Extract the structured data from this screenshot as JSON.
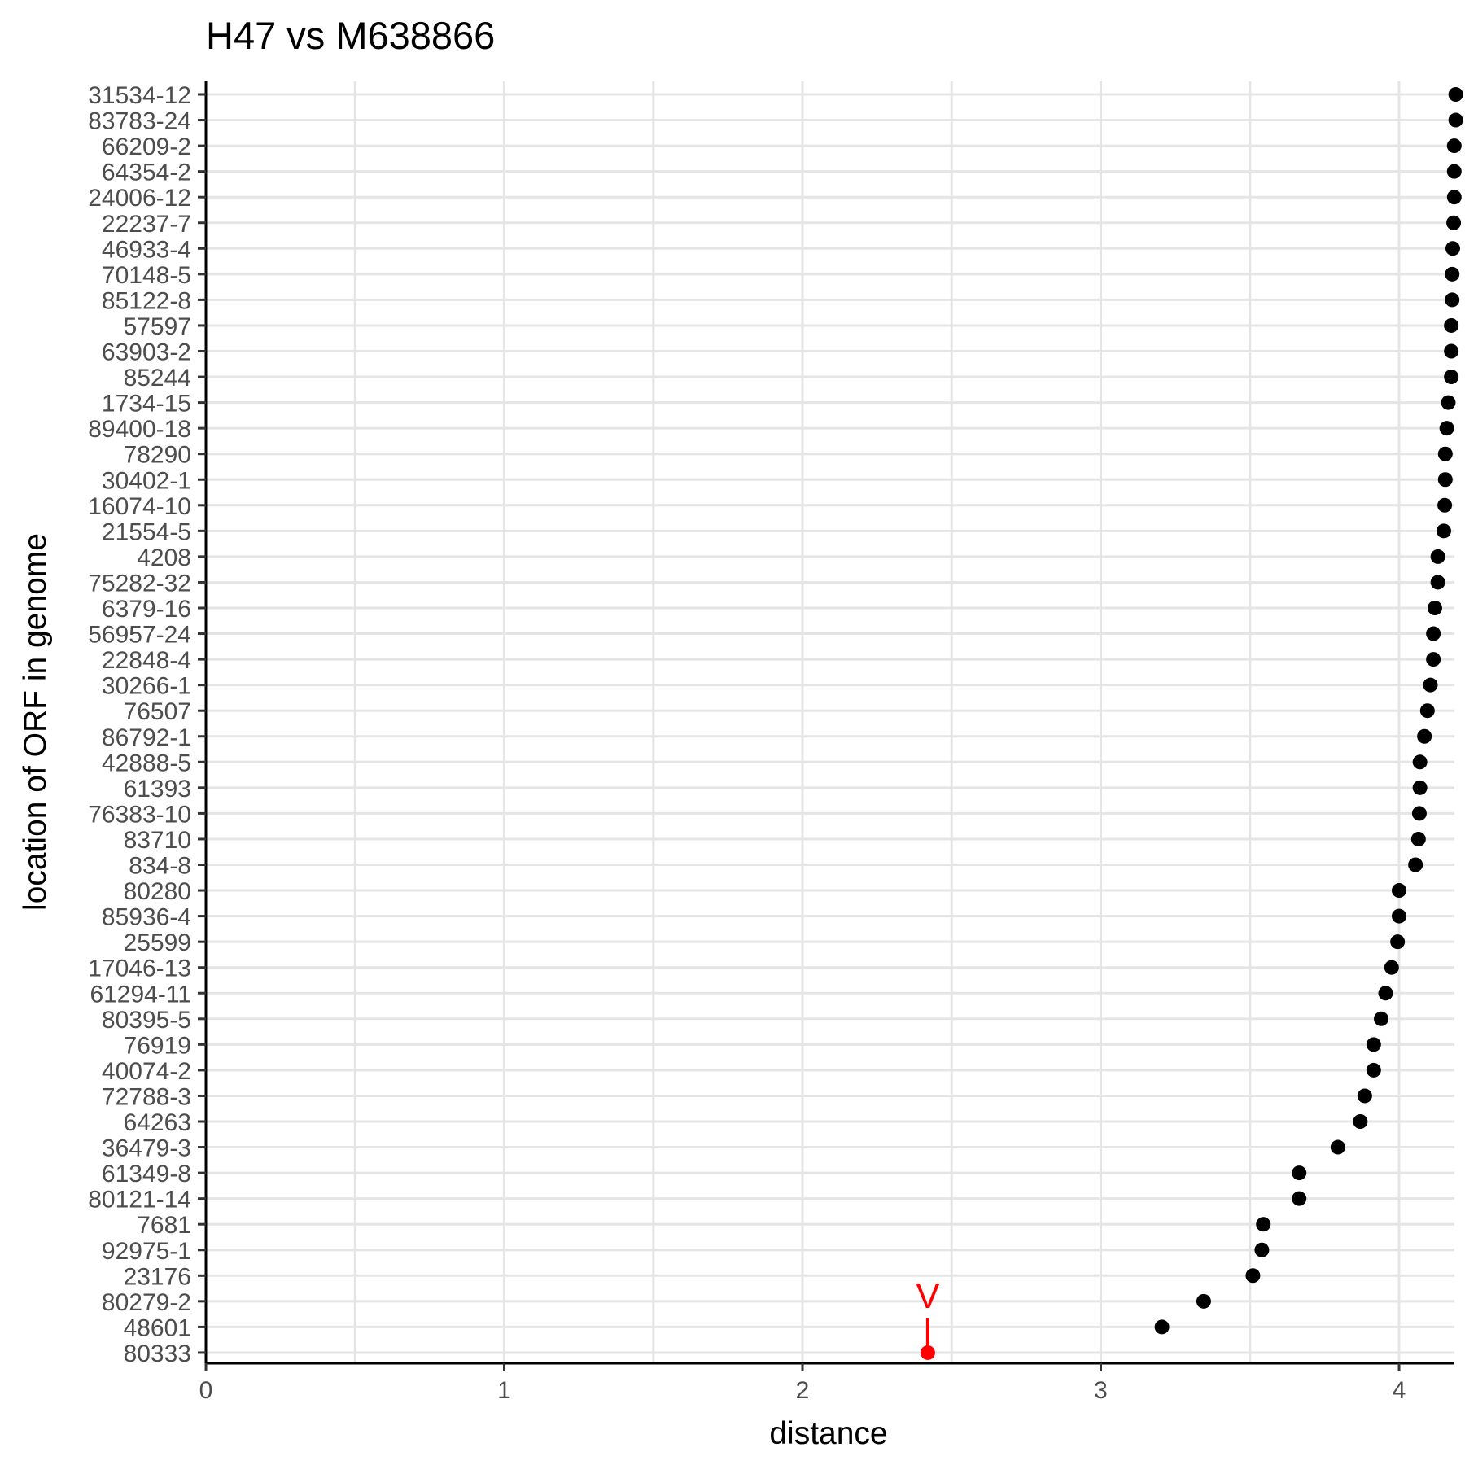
{
  "chart_data": {
    "type": "scatter",
    "title": "H47 vs M638866",
    "xlabel": "distance",
    "ylabel": "location of ORF in genome",
    "xlim": [
      0,
      4.18
    ],
    "xticks": [
      "0",
      "1",
      "2",
      "3",
      "4"
    ],
    "grid": true,
    "legend": "none",
    "categories": [
      "31534-12",
      "83783-24",
      "66209-2",
      "64354-2",
      "24006-12",
      "22237-7",
      "46933-4",
      "70148-5",
      "85122-8",
      "57597",
      "63903-2",
      "85244",
      "1734-15",
      "89400-18",
      "78290",
      "30402-1",
      "16074-10",
      "21554-5",
      "4208",
      "75282-32",
      "6379-16",
      "56957-24",
      "22848-4",
      "30266-1",
      "76507",
      "86792-1",
      "42888-5",
      "61393",
      "76383-10",
      "83710",
      "834-8",
      "80280",
      "85936-4",
      "25599",
      "17046-13",
      "61294-11",
      "80395-5",
      "76919",
      "40074-2",
      "72788-3",
      "64263",
      "36479-3",
      "61349-8",
      "80121-14",
      "7681",
      "92975-1",
      "23176",
      "80279-2",
      "48601",
      "80333"
    ],
    "values": [
      4.19,
      4.19,
      4.185,
      4.185,
      4.185,
      4.183,
      4.18,
      4.178,
      4.178,
      4.175,
      4.175,
      4.175,
      4.165,
      4.16,
      4.155,
      4.155,
      4.153,
      4.15,
      4.13,
      4.13,
      4.12,
      4.115,
      4.115,
      4.105,
      4.095,
      4.085,
      4.07,
      4.07,
      4.068,
      4.065,
      4.055,
      4.0,
      4.0,
      3.995,
      3.975,
      3.955,
      3.94,
      3.915,
      3.915,
      3.885,
      3.87,
      3.795,
      3.665,
      3.665,
      3.545,
      3.54,
      3.51,
      3.345,
      3.205,
      2.42
    ],
    "highlight": {
      "category": "80333",
      "value": 2.42,
      "marker_label": "V",
      "color": "#ff0000"
    },
    "point_color": "#000000",
    "grid_color": "#e5e5e5"
  }
}
